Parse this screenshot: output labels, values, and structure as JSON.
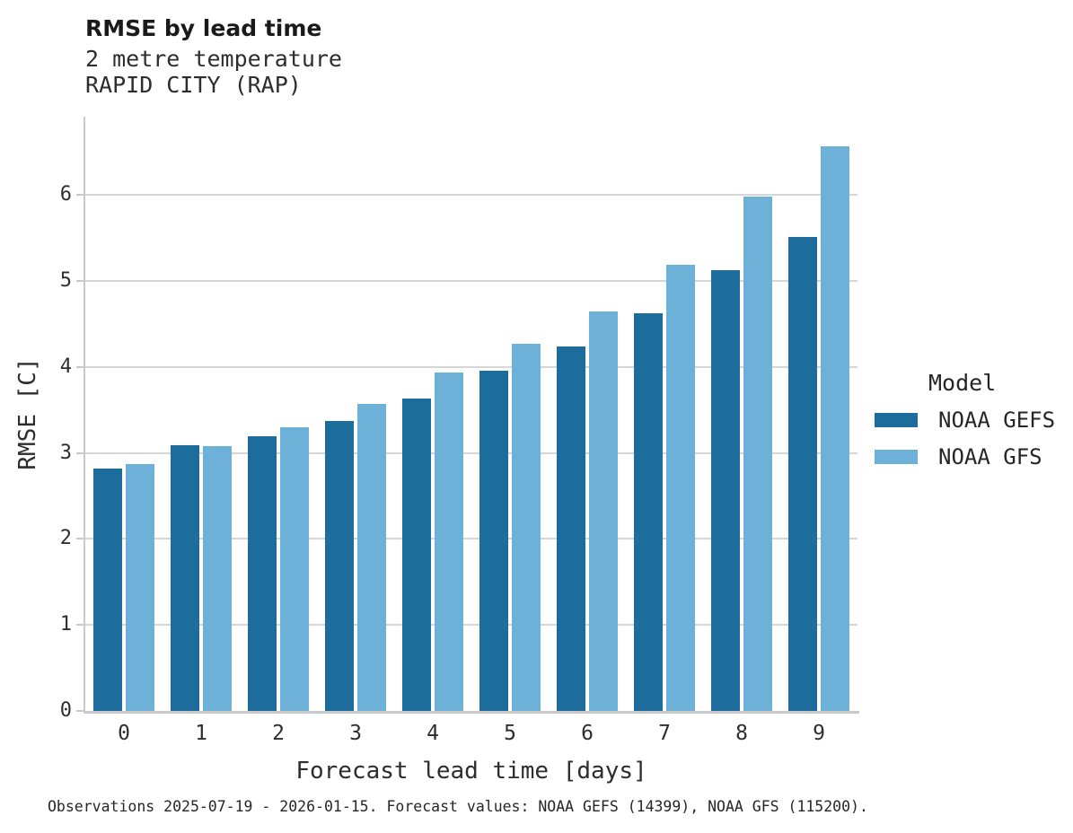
{
  "header": {
    "title": "RMSE by lead time",
    "subtitle1": "2 metre temperature",
    "subtitle2": "RAPID CITY (RAP)"
  },
  "chart_data": {
    "type": "bar",
    "title": "RMSE by lead time",
    "subtitle": [
      "2 metre temperature",
      "RAPID CITY (RAP)"
    ],
    "categories": [
      "0",
      "1",
      "2",
      "3",
      "4",
      "5",
      "6",
      "7",
      "8",
      "9"
    ],
    "series": [
      {
        "name": "NOAA GEFS",
        "color": "#1c6c9c",
        "values": [
          2.82,
          3.09,
          3.19,
          3.37,
          3.63,
          3.96,
          4.24,
          4.62,
          5.13,
          5.51
        ]
      },
      {
        "name": "NOAA GFS",
        "color": "#6db1d8",
        "values": [
          2.87,
          3.08,
          3.3,
          3.57,
          3.94,
          4.27,
          4.64,
          5.19,
          5.98,
          6.57
        ]
      }
    ],
    "xlabel": "Forecast lead time [days]",
    "ylabel": "RMSE [C]",
    "ylim": [
      0,
      6.91
    ],
    "yticks": [
      0,
      1,
      2,
      3,
      4,
      5,
      6
    ],
    "grid": "horizontal-only",
    "legend_position": "right-middle"
  },
  "legend": {
    "title": "Model",
    "entries": [
      "NOAA GEFS",
      "NOAA GFS"
    ]
  },
  "caption": "Observations 2025-07-19 - 2026-01-15. Forecast values: NOAA GEFS (14399), NOAA GFS (115200).",
  "colors": {
    "gridline": "#d6d6d6",
    "spine": "#c9c9c9",
    "title_text": "#1a1a1a",
    "body_text": "#2d2d2d"
  }
}
